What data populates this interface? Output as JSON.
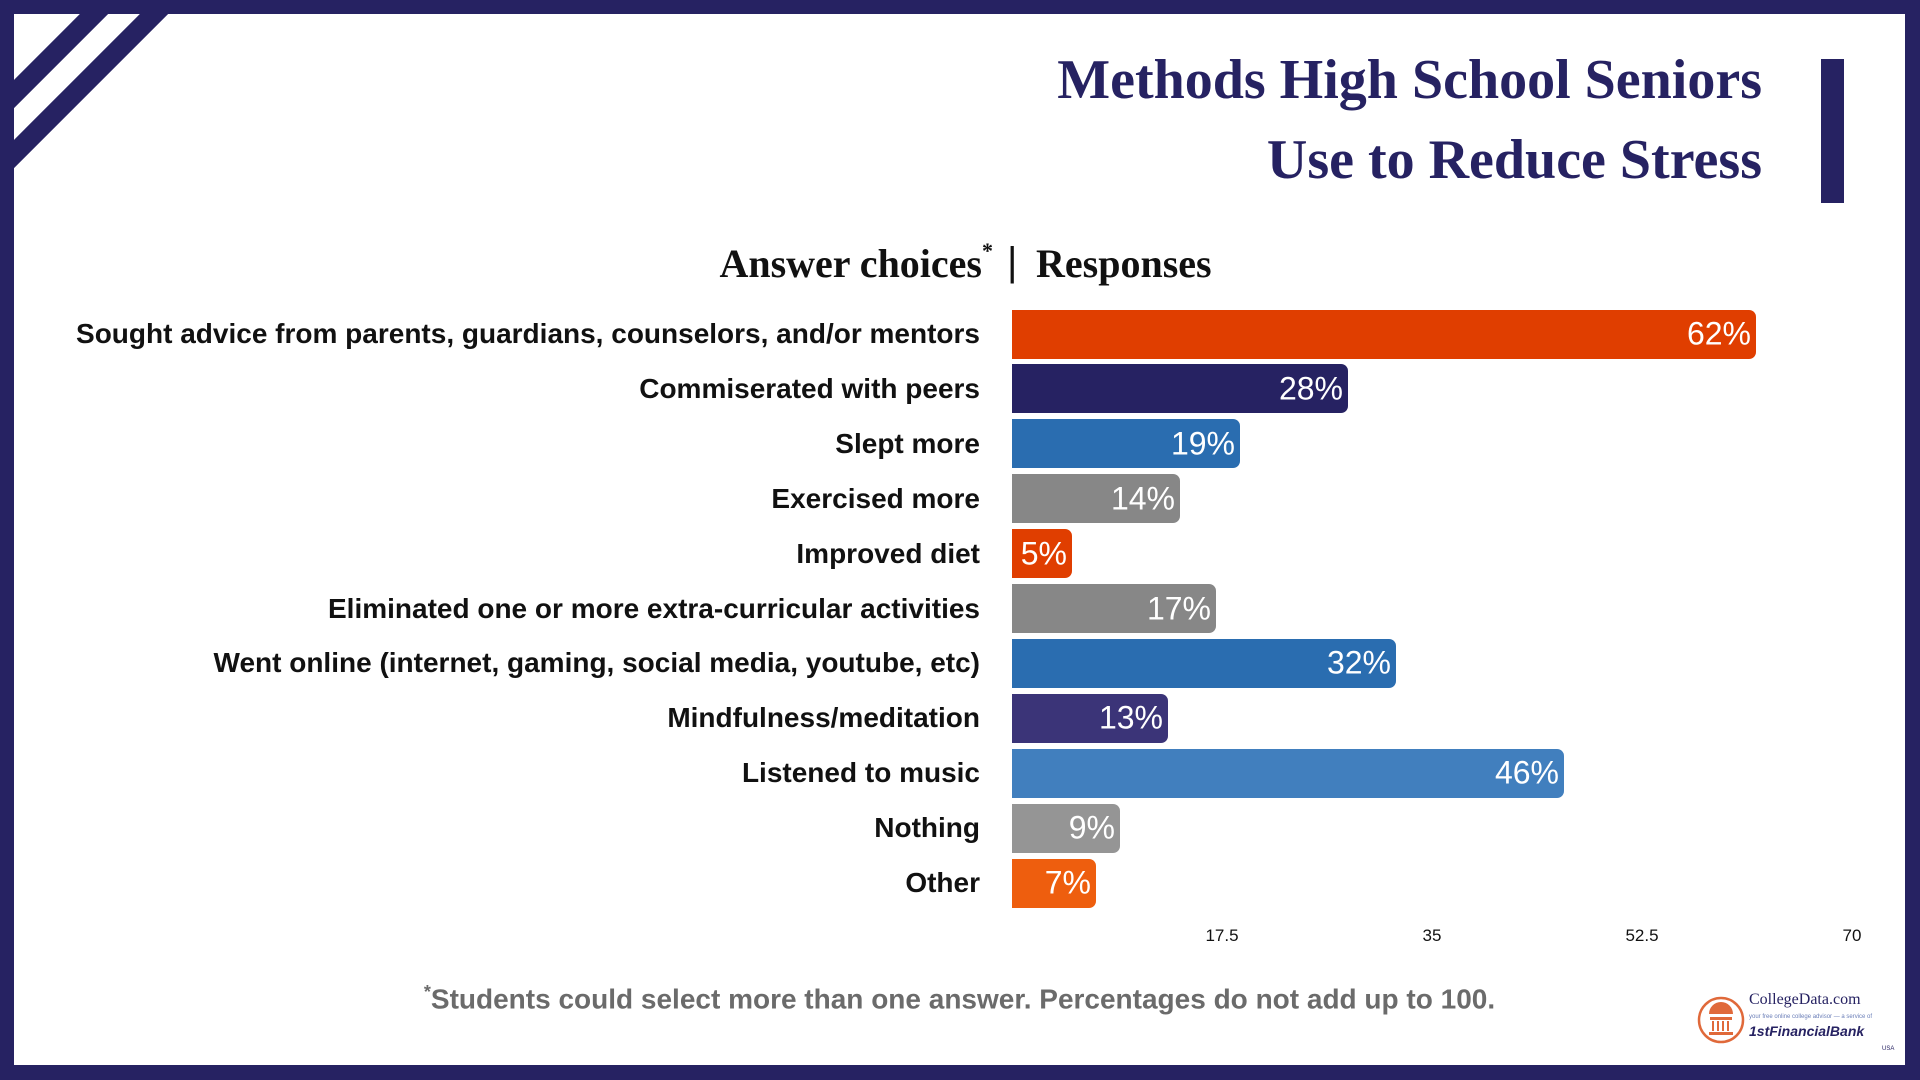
{
  "title": {
    "line1": "Methods High School Seniors",
    "line2": "Use to Reduce Stress"
  },
  "header": {
    "left": "Answer choices",
    "asterisk": "*",
    "separator": "|",
    "right": "Responses"
  },
  "footnote": {
    "asterisk": "*",
    "text": "Students could select more than one answer. Percentages do not add up to 100."
  },
  "logo": {
    "name": "CollegeData.com",
    "tagline": "your free online college advisor — a service of",
    "bank": "1stFinancialBank",
    "country": "USA"
  },
  "colors": {
    "frame": "#262262",
    "orange": "#e03e00",
    "navy": "#262262",
    "blue": "#2a6db0",
    "gray": "#878787"
  },
  "chart_data": {
    "type": "bar",
    "orientation": "horizontal",
    "categories": [
      "Sought advice from parents, guardians, counselors, and/or mentors",
      "Commiserated with peers",
      "Slept more",
      "Exercised more",
      "Improved diet",
      "Eliminated one or more extra-curricular activities",
      "Went online (internet, gaming, social media, youtube, etc)",
      "Mindfulness/meditation",
      "Listened to music",
      "Nothing",
      "Other"
    ],
    "values": [
      62,
      28,
      19,
      14,
      5,
      17,
      32,
      13,
      46,
      9,
      7
    ],
    "data_labels": [
      "62%",
      "28%",
      "19%",
      "14%",
      "5%",
      "17%",
      "32%",
      "13%",
      "46%",
      "9%",
      "7%"
    ],
    "bar_colors": [
      "#e03e00",
      "#262262",
      "#2a6db0",
      "#878787",
      "#e03e00",
      "#878787",
      "#2a6db0",
      "#3b3478",
      "#417fbe",
      "#959595",
      "#ee5e0e"
    ],
    "xlim": [
      0,
      70
    ],
    "xticks": [
      "17.5",
      "35",
      "52.5",
      "70"
    ],
    "xtick_values": [
      17.5,
      35,
      52.5,
      70
    ],
    "grid": false,
    "legend": "none"
  }
}
